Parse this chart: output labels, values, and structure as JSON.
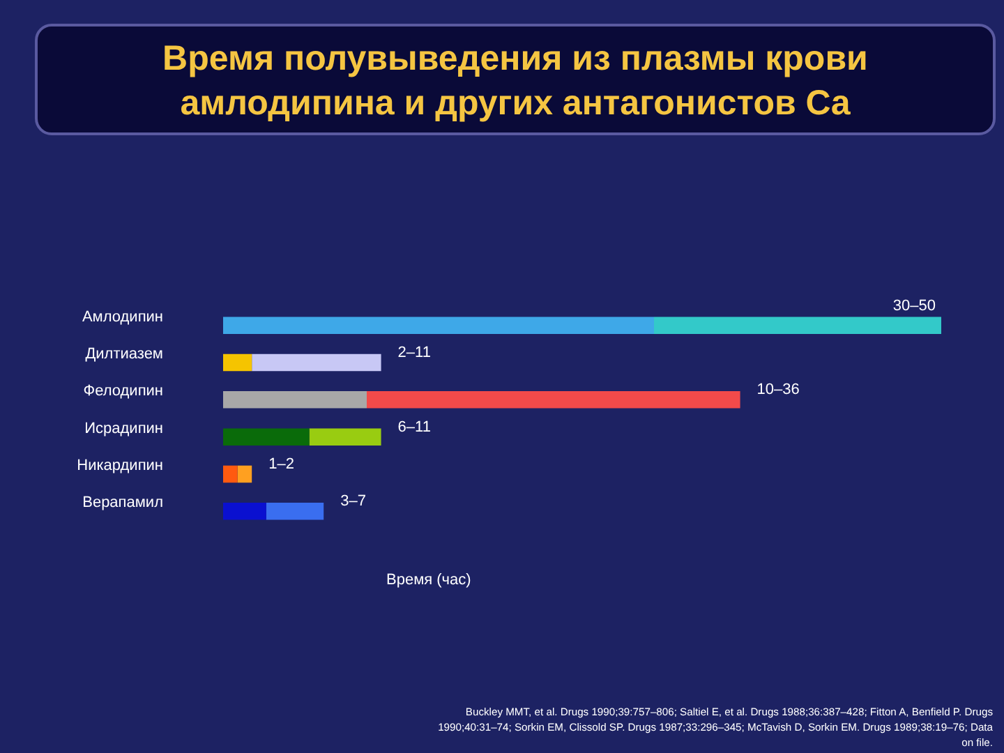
{
  "chart_data": {
    "type": "bar",
    "orientation": "horizontal",
    "stacked": true,
    "title": "Время полувыведения из плазмы крови амлодипина и других антагонистов Ca",
    "xlabel": "Время (час)",
    "categories": [
      "Амлодипин",
      "Дилтиазем",
      "Фелодипин",
      "Исрадипин",
      "Никардипин",
      "Верапамил"
    ],
    "series": [
      {
        "colors": [
          "#3ea8e8",
          "#f5c400",
          "#a8a8a8",
          "#0a6b0a",
          "#ff5a10",
          "#0a10d0"
        ],
        "values": [
          30,
          2,
          10,
          6,
          1,
          3
        ]
      },
      {
        "colors": [
          "#33c9c9",
          "#c8c8f5",
          "#f24a4a",
          "#99cc11",
          "#ffa020",
          "#3a6ef0"
        ],
        "values": [
          20,
          9,
          26,
          5,
          1,
          4
        ],
        "value_labels": [
          "30–50",
          "2–11",
          "10–36",
          "6–11",
          "1–2",
          "3–7"
        ]
      }
    ],
    "xlim": [
      0,
      50
    ],
    "tick_labels": "y",
    "annotations": [
      "Buckley MMT, et al. Drugs 1990;39:757–806; Saltiel E, et al. Drugs 1988;36:387–428; Fitton A, Benfield P. Drugs 1990;40:31–74; Sorkin EM, Clissold SP. Drugs 1987;33:296–345; McTavish D, Sorkin EM. Drugs 1989;38:19–76; Data on file."
    ]
  }
}
